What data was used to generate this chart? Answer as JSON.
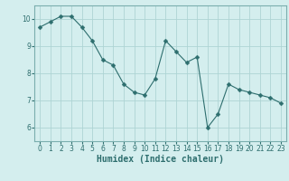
{
  "x": [
    0,
    1,
    2,
    3,
    4,
    5,
    6,
    7,
    8,
    9,
    10,
    11,
    12,
    13,
    14,
    15,
    16,
    17,
    18,
    19,
    20,
    21,
    22,
    23
  ],
  "y": [
    9.7,
    9.9,
    10.1,
    10.1,
    9.7,
    9.2,
    8.5,
    8.3,
    7.6,
    7.3,
    7.2,
    7.8,
    9.2,
    8.8,
    8.4,
    8.6,
    6.0,
    6.5,
    7.6,
    7.4,
    7.3,
    7.2,
    7.1,
    6.9
  ],
  "xlabel": "Humidex (Indice chaleur)",
  "line_color": "#2d6e6e",
  "marker": "D",
  "marker_size": 2.5,
  "bg_color": "#d4eeee",
  "grid_color": "#aed4d4",
  "xlim": [
    -0.5,
    23.5
  ],
  "ylim": [
    5.5,
    10.5
  ],
  "yticks": [
    6,
    7,
    8,
    9,
    10
  ],
  "xticks": [
    0,
    1,
    2,
    3,
    4,
    5,
    6,
    7,
    8,
    9,
    10,
    11,
    12,
    13,
    14,
    15,
    16,
    17,
    18,
    19,
    20,
    21,
    22,
    23
  ],
  "tick_fontsize": 5.5,
  "xlabel_fontsize": 7.0,
  "spine_color": "#7aaeae"
}
